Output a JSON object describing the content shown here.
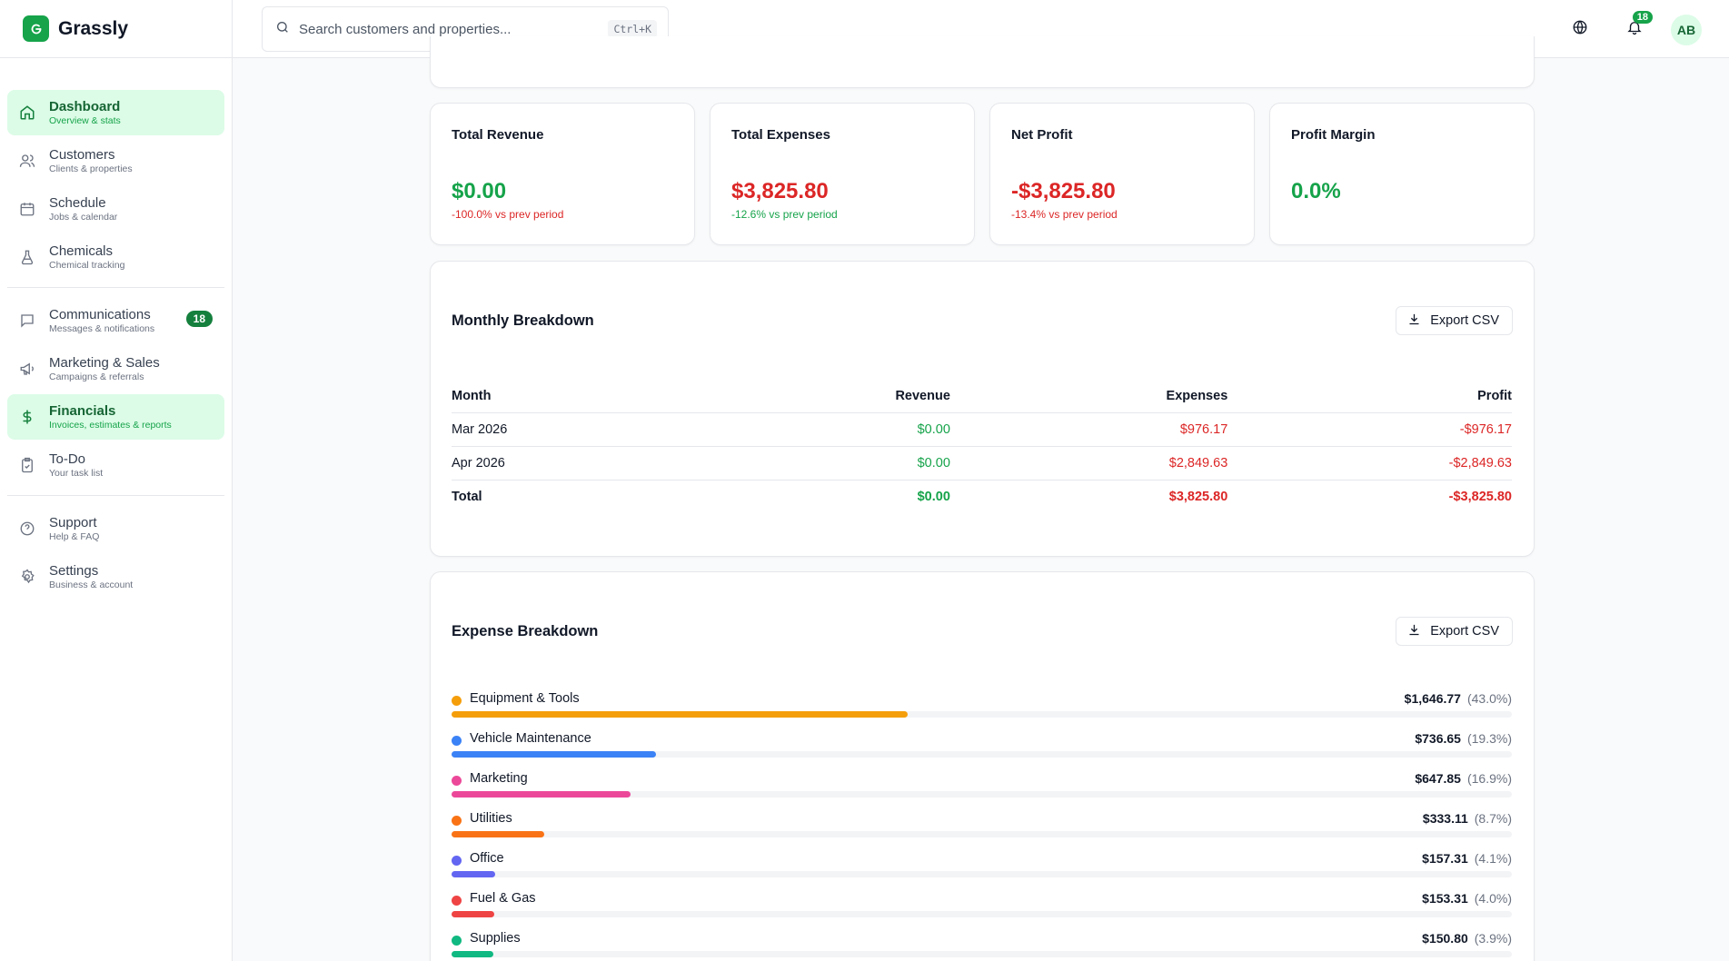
{
  "app": {
    "name": "Grassly"
  },
  "search": {
    "placeholder": "Search customers and properties...",
    "shortcut": "Ctrl+K"
  },
  "header": {
    "notification_count": "18",
    "avatar_initials": "AB"
  },
  "sidebar": {
    "items": [
      {
        "label": "Dashboard",
        "sub": "Overview & stats"
      },
      {
        "label": "Customers",
        "sub": "Clients & properties"
      },
      {
        "label": "Schedule",
        "sub": "Jobs & calendar"
      },
      {
        "label": "Chemicals",
        "sub": "Chemical tracking"
      },
      {
        "label": "Communications",
        "sub": "Messages & notifications",
        "badge": "18"
      },
      {
        "label": "Marketing & Sales",
        "sub": "Campaigns & referrals"
      },
      {
        "label": "Financials",
        "sub": "Invoices, estimates & reports"
      },
      {
        "label": "To-Do",
        "sub": "Your task list"
      },
      {
        "label": "Support",
        "sub": "Help & FAQ"
      },
      {
        "label": "Settings",
        "sub": "Business & account"
      }
    ]
  },
  "stats": [
    {
      "title": "Total Revenue",
      "value": "$0.00",
      "delta": "-100.0% vs prev period"
    },
    {
      "title": "Total Expenses",
      "value": "$3,825.80",
      "delta": "-12.6% vs prev period"
    },
    {
      "title": "Net Profit",
      "value": "-$3,825.80",
      "delta": "-13.4% vs prev period"
    },
    {
      "title": "Profit Margin",
      "value": "0.0%"
    }
  ],
  "monthly": {
    "title": "Monthly Breakdown",
    "export_label": "Export CSV",
    "columns": [
      "Month",
      "Revenue",
      "Expenses",
      "Profit"
    ],
    "rows": [
      [
        "Mar 2026",
        "$0.00",
        "$976.17",
        "-$976.17"
      ],
      [
        "Apr 2026",
        "$0.00",
        "$2,849.63",
        "-$2,849.63"
      ]
    ],
    "total": [
      "Total",
      "$0.00",
      "$3,825.80",
      "-$3,825.80"
    ]
  },
  "expenses": {
    "title": "Expense Breakdown",
    "export_label": "Export CSV",
    "items": [
      {
        "name": "Equipment & Tools",
        "amount": "$1,646.77",
        "pct_label": "(43.0%)",
        "pct": 43.0,
        "color": "#f59e0b"
      },
      {
        "name": "Vehicle Maintenance",
        "amount": "$736.65",
        "pct_label": "(19.3%)",
        "pct": 19.3,
        "color": "#3b82f6"
      },
      {
        "name": "Marketing",
        "amount": "$647.85",
        "pct_label": "(16.9%)",
        "pct": 16.9,
        "color": "#ec4899"
      },
      {
        "name": "Utilities",
        "amount": "$333.11",
        "pct_label": "(8.7%)",
        "pct": 8.7,
        "color": "#f97316"
      },
      {
        "name": "Office",
        "amount": "$157.31",
        "pct_label": "(4.1%)",
        "pct": 4.1,
        "color": "#6366f1"
      },
      {
        "name": "Fuel & Gas",
        "amount": "$153.31",
        "pct_label": "(4.0%)",
        "pct": 4.0,
        "color": "#ef4444"
      },
      {
        "name": "Supplies",
        "amount": "$150.80",
        "pct_label": "(3.9%)",
        "pct": 3.9,
        "color": "#10b981"
      }
    ]
  }
}
